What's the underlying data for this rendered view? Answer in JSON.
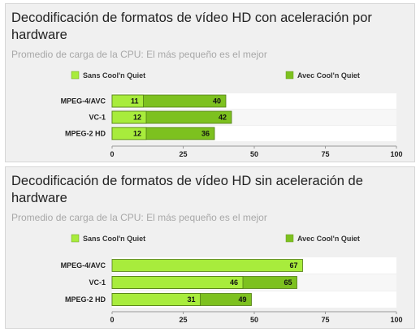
{
  "chart_data": [
    {
      "type": "bar",
      "orientation": "horizontal",
      "stacked": "overlay",
      "title": "Decodificación de formatos de vídeo HD con aceleración por hardware",
      "subtitle": "Promedio de carga de la CPU: El más pequeño es el mejor",
      "categories": [
        "MPEG-4/AVC",
        "VC-1",
        "MPEG-2 HD"
      ],
      "series": [
        {
          "name": "Sans Cool'n Quiet",
          "values": [
            11,
            12,
            12
          ],
          "color": "#a8ec3c"
        },
        {
          "name": "Avec Cool'n Quiet",
          "values": [
            40,
            42,
            36
          ],
          "color": "#7dc11f"
        }
      ],
      "xlim": [
        0,
        100
      ],
      "ticks": [
        "0",
        "25",
        "50",
        "75",
        "100"
      ],
      "legend": "top"
    },
    {
      "type": "bar",
      "orientation": "horizontal",
      "stacked": "overlay",
      "title": "Decodificación de formatos de vídeo HD sin aceleración de hardware",
      "subtitle": "Promedio de carga de la CPU: El más pequeño es el mejor",
      "categories": [
        "MPEG-4/AVC",
        "VC-1",
        "MPEG-2 HD"
      ],
      "series": [
        {
          "name": "Sans Cool'n Quiet",
          "values": [
            67,
            46,
            31
          ],
          "color": "#a8ec3c"
        },
        {
          "name": "Avec Cool'n Quiet",
          "values": [
            null,
            65,
            49
          ],
          "color": "#7dc11f"
        }
      ],
      "xlim": [
        0,
        100
      ],
      "ticks": [
        "0",
        "25",
        "50",
        "75",
        "100"
      ],
      "legend": "top"
    }
  ]
}
